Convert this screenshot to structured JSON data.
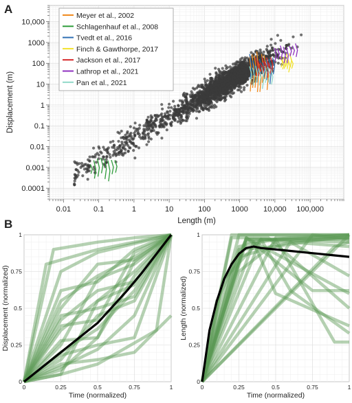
{
  "figure": {
    "panel_a_label": "A",
    "panel_b_label": "B"
  },
  "chart_data": [
    {
      "type": "scatter",
      "panel": "A",
      "xlabel": "Length (m)",
      "ylabel": "Displacement (m)",
      "xscale": "log",
      "yscale": "log",
      "xlim": [
        0.004,
        900000
      ],
      "ylim": [
        3e-05,
        60000
      ],
      "xticks": [
        "0.01",
        "0.1",
        "1",
        "10",
        "100",
        "1000",
        "10,000",
        "100,000"
      ],
      "xtick_values": [
        0.01,
        0.1,
        1,
        10,
        100,
        1000,
        10000,
        100000
      ],
      "yticks": [
        "10,000",
        "1000",
        "100",
        "10",
        "1",
        "0.1",
        "0.01",
        "0.001",
        "0.0001"
      ],
      "ytick_values": [
        10000,
        1000,
        100,
        10,
        1,
        0.1,
        0.01,
        0.001,
        0.0001
      ],
      "grid": true,
      "legend_position": "top-left",
      "background_points": {
        "color": "#3a3a3a",
        "approx_count": 2200,
        "trend": "displacement ≈ 0.03 × length",
        "clusters": [
          {
            "length_range": [
              0.02,
              40
            ],
            "displacement_range": [
              0.0003,
              1
            ]
          },
          {
            "length_range": [
              5,
              900000
            ],
            "displacement_range": [
              0.05,
              30000
            ]
          }
        ]
      },
      "series": [
        {
          "name": "Meyer et al., 2002",
          "color": "#f08a1e",
          "length_range": [
            2000,
            6000
          ],
          "displacement_range": [
            3,
            400
          ]
        },
        {
          "name": "Schlagenhauf et al., 2008",
          "color": "#2e9c3a",
          "length_range": [
            0.06,
            0.3
          ],
          "displacement_range": [
            0.0002,
            0.003
          ]
        },
        {
          "name": "Tvedt et al., 2016",
          "color": "#2f6fb3",
          "length_range": [
            2000,
            9000
          ],
          "displacement_range": [
            10,
            300
          ]
        },
        {
          "name": "Finch & Gawthorpe, 2017",
          "color": "#f2e22b",
          "length_range": [
            15000,
            30000
          ],
          "displacement_range": [
            30,
            300
          ]
        },
        {
          "name": "Jackson et al., 2017",
          "color": "#d62728",
          "length_range": [
            3000,
            8000
          ],
          "displacement_range": [
            20,
            200
          ]
        },
        {
          "name": "Lathrop et al., 2021",
          "color": "#8e2fbf",
          "length_range": [
            10000,
            40000
          ],
          "displacement_range": [
            100,
            1000
          ]
        },
        {
          "name": "Pan et al., 2021",
          "color": "#8fd8c8",
          "length_range": [
            2000,
            8000
          ],
          "displacement_range": [
            5,
            100
          ]
        }
      ]
    },
    {
      "type": "line",
      "panel": "B-left",
      "xlabel": "Time (normalized)",
      "ylabel": "Displacement (normalized)",
      "xlim": [
        0,
        1
      ],
      "ylim": [
        0,
        1
      ],
      "xticks": [
        "0",
        "0.25",
        "0.5",
        "0.75",
        "1"
      ],
      "xtick_values": [
        0,
        0.25,
        0.5,
        0.75,
        1
      ],
      "yticks": [
        "0",
        "0.25",
        "0.5",
        "0.75",
        "1"
      ],
      "ytick_values": [
        0,
        0.25,
        0.5,
        0.75,
        1
      ],
      "grid": true,
      "color": "#5a9a55",
      "mean_curve": {
        "color": "#000000",
        "x": [
          0,
          0.1,
          0.2,
          0.3,
          0.4,
          0.5,
          0.6,
          0.7,
          0.8,
          0.9,
          1.0
        ],
        "y": [
          0,
          0.08,
          0.16,
          0.24,
          0.32,
          0.4,
          0.51,
          0.62,
          0.74,
          0.87,
          1.0
        ]
      },
      "individual_curves": [
        {
          "x": [
            0,
            0.25,
            0.5,
            0.75,
            1
          ],
          "y": [
            0,
            0.1,
            0.22,
            0.45,
            1
          ]
        },
        {
          "x": [
            0,
            0.25,
            0.5,
            0.75,
            1
          ],
          "y": [
            0,
            0.2,
            0.36,
            0.62,
            1
          ]
        },
        {
          "x": [
            0,
            0.25,
            0.5,
            0.75,
            1
          ],
          "y": [
            0,
            0.35,
            0.55,
            0.75,
            1
          ]
        },
        {
          "x": [
            0,
            0.25,
            0.5,
            0.75,
            1
          ],
          "y": [
            0,
            0.55,
            0.72,
            0.85,
            1
          ]
        },
        {
          "x": [
            0,
            0.25,
            0.5,
            0.75,
            1
          ],
          "y": [
            0,
            0.75,
            0.88,
            0.94,
            1
          ]
        },
        {
          "x": [
            0,
            0.2,
            0.5,
            0.75,
            1
          ],
          "y": [
            0,
            0.9,
            0.95,
            0.98,
            1
          ]
        },
        {
          "x": [
            0,
            0.25,
            0.5,
            0.9,
            1
          ],
          "y": [
            0,
            0.05,
            0.12,
            0.35,
            1
          ]
        },
        {
          "x": [
            0,
            0.25,
            0.5,
            0.75,
            1
          ],
          "y": [
            0,
            0.15,
            0.45,
            0.55,
            1
          ]
        },
        {
          "x": [
            0,
            0.25,
            0.5,
            0.75,
            1
          ],
          "y": [
            0,
            0.28,
            0.3,
            0.72,
            1
          ]
        },
        {
          "x": [
            0,
            0.25,
            0.5,
            0.75,
            1
          ],
          "y": [
            0,
            0.42,
            0.62,
            0.68,
            1
          ]
        },
        {
          "x": [
            0,
            0.25,
            0.5,
            0.75,
            1
          ],
          "y": [
            0,
            0.62,
            0.68,
            0.9,
            1
          ]
        },
        {
          "x": [
            0,
            0.25,
            0.5,
            0.75,
            1
          ],
          "y": [
            0,
            0.08,
            0.3,
            0.82,
            1
          ]
        },
        {
          "x": [
            0,
            0.25,
            0.5,
            0.75,
            1
          ],
          "y": [
            0,
            0.45,
            0.5,
            0.58,
            1
          ]
        },
        {
          "x": [
            0,
            0.25,
            0.5,
            0.75,
            1
          ],
          "y": [
            0,
            0.25,
            0.7,
            0.8,
            1
          ]
        },
        {
          "x": [
            0,
            0.25,
            0.5,
            0.75,
            1
          ],
          "y": [
            0,
            0.18,
            0.25,
            0.3,
            1
          ]
        },
        {
          "x": [
            0,
            0.15,
            0.5,
            0.75,
            1
          ],
          "y": [
            0,
            0.8,
            0.9,
            0.95,
            1
          ]
        },
        {
          "x": [
            0,
            0.25,
            0.5,
            0.75,
            1
          ],
          "y": [
            0,
            0.12,
            0.15,
            0.2,
            0.45
          ]
        },
        {
          "x": [
            0,
            0.25,
            0.5,
            0.75,
            1
          ],
          "y": [
            0,
            0.38,
            0.42,
            0.88,
            1
          ]
        },
        {
          "x": [
            0,
            0.25,
            0.5,
            0.75,
            1
          ],
          "y": [
            0,
            0.5,
            0.8,
            0.83,
            1
          ]
        },
        {
          "x": [
            0,
            0.25,
            0.5,
            0.75,
            1
          ],
          "y": [
            0,
            0.05,
            0.55,
            0.66,
            1
          ]
        }
      ]
    },
    {
      "type": "line",
      "panel": "B-right",
      "xlabel": "Time (normalized)",
      "ylabel": "Length (normalized)",
      "xlim": [
        0,
        1
      ],
      "ylim": [
        0,
        1
      ],
      "xticks": [
        "0",
        "0.25",
        "0.5",
        "0.75",
        "1"
      ],
      "xtick_values": [
        0,
        0.25,
        0.5,
        0.75,
        1
      ],
      "yticks": [
        "0",
        "0.25",
        "0.5",
        "0.75",
        "1"
      ],
      "ytick_values": [
        0,
        0.25,
        0.5,
        0.75,
        1
      ],
      "grid": true,
      "color": "#5a9a55",
      "mean_curve": {
        "color": "#000000",
        "x": [
          0,
          0.05,
          0.1,
          0.15,
          0.2,
          0.25,
          0.3,
          0.35,
          0.4,
          0.5,
          0.6,
          0.7,
          0.8,
          0.9,
          1.0
        ],
        "y": [
          0,
          0.35,
          0.55,
          0.7,
          0.8,
          0.87,
          0.91,
          0.92,
          0.91,
          0.9,
          0.89,
          0.88,
          0.87,
          0.86,
          0.85
        ]
      },
      "individual_curves": [
        {
          "x": [
            0,
            0.25,
            1
          ],
          "y": [
            0,
            1,
            1
          ]
        },
        {
          "x": [
            0,
            0.2,
            1
          ],
          "y": [
            0,
            1,
            1
          ]
        },
        {
          "x": [
            0,
            0.3,
            0.6,
            1
          ],
          "y": [
            0,
            0.95,
            0.98,
            1
          ]
        },
        {
          "x": [
            0,
            0.25,
            0.5,
            1
          ],
          "y": [
            0,
            0.75,
            0.95,
            0.98
          ]
        },
        {
          "x": [
            0,
            0.5,
            1
          ],
          "y": [
            0,
            0.98,
            0.98
          ]
        },
        {
          "x": [
            0,
            0.6,
            1
          ],
          "y": [
            0,
            0.95,
            0.92
          ]
        },
        {
          "x": [
            0,
            0.75,
            1
          ],
          "y": [
            0,
            1,
            0.97
          ]
        },
        {
          "x": [
            0,
            0.9,
            1
          ],
          "y": [
            0,
            0.92,
            0.95
          ]
        },
        {
          "x": [
            0,
            1
          ],
          "y": [
            0,
            1
          ]
        },
        {
          "x": [
            0,
            0.25,
            0.5,
            0.75,
            1
          ],
          "y": [
            0,
            0.9,
            0.92,
            0.96,
            0.99
          ]
        },
        {
          "x": [
            0,
            0.15,
            0.4,
            1
          ],
          "y": [
            0,
            0.7,
            0.97,
            0.95
          ]
        },
        {
          "x": [
            0,
            0.3,
            1
          ],
          "y": [
            0,
            0.98,
            0.6
          ]
        },
        {
          "x": [
            0,
            0.35,
            0.5,
            1
          ],
          "y": [
            0,
            0.95,
            0.6,
            0.38
          ]
        },
        {
          "x": [
            0,
            0.4,
            0.6,
            1
          ],
          "y": [
            0,
            0.97,
            0.62,
            0.33
          ]
        },
        {
          "x": [
            0,
            0.3,
            0.75,
            1
          ],
          "y": [
            0,
            0.98,
            0.62,
            0.62
          ]
        },
        {
          "x": [
            0,
            0.3,
            0.5,
            0.9,
            1
          ],
          "y": [
            0,
            0.97,
            0.97,
            0.27,
            0.27
          ]
        },
        {
          "x": [
            0,
            0.2,
            0.45,
            1
          ],
          "y": [
            0,
            0.98,
            0.98,
            0.5
          ]
        },
        {
          "x": [
            0,
            0.25,
            0.45,
            0.75,
            1
          ],
          "y": [
            0,
            0.92,
            0.96,
            0.98,
            1
          ]
        },
        {
          "x": [
            0,
            0.1,
            0.3,
            1
          ],
          "y": [
            0,
            0.55,
            0.97,
            0.97
          ]
        },
        {
          "x": [
            0,
            0.25,
            0.6,
            1
          ],
          "y": [
            0,
            0.85,
            0.95,
            0.72
          ]
        }
      ]
    }
  ]
}
